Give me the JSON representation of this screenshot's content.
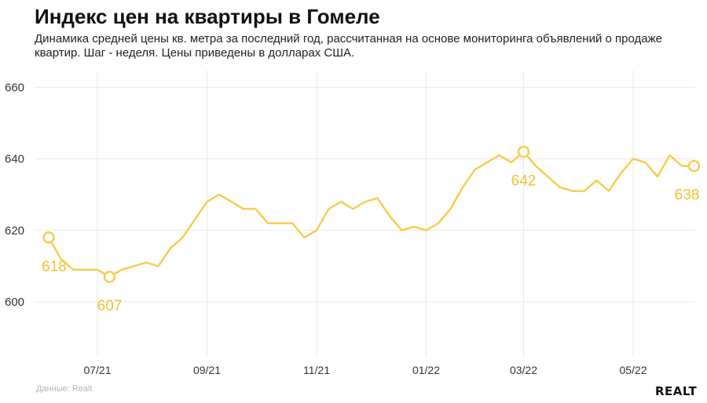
{
  "title": "Индекс цен на квартиры в Гомеле",
  "subtitle": "Динамика средней цены кв. метра за последний год, рассчитанная на основе мониторинга объявлений о продаже квартир. Шаг - неделя. Цены приведены в долларах США.",
  "source": "Данные: Realt",
  "logo": "REALT",
  "colors": {
    "line": "#f7cd50",
    "label": "#f2c232",
    "grid": "#e9e9e9",
    "tick": "#333333"
  },
  "chart_data": {
    "type": "line",
    "title": "Индекс цен на квартиры в Гомеле",
    "xlabel": "",
    "ylabel": "",
    "ylim": [
      585,
      665
    ],
    "yticks": [
      600,
      620,
      640,
      660
    ],
    "xticks": [
      "07/21",
      "09/21",
      "11/21",
      "01/22",
      "03/22",
      "05/22"
    ],
    "xtick_weeks": [
      4,
      13,
      22,
      31,
      39,
      48
    ],
    "grid": true,
    "legend": "none",
    "series": [
      {
        "name": "",
        "week": [
          0,
          1,
          2,
          3,
          4,
          5,
          6,
          7,
          8,
          9,
          10,
          11,
          12,
          13,
          14,
          15,
          16,
          17,
          18,
          19,
          20,
          21,
          22,
          23,
          24,
          25,
          26,
          27,
          28,
          29,
          30,
          31,
          32,
          33,
          34,
          35,
          36,
          37,
          38,
          39,
          40,
          41,
          42,
          43,
          44,
          45,
          46,
          47,
          48,
          49,
          50,
          51,
          52,
          53
        ],
        "values": [
          618,
          612,
          609,
          609,
          609,
          607,
          609,
          610,
          611,
          610,
          615,
          618,
          623,
          628,
          630,
          628,
          626,
          626,
          622,
          622,
          622,
          618,
          620,
          626,
          628,
          626,
          628,
          629,
          624,
          620,
          621,
          620,
          622,
          626,
          632,
          637,
          639,
          641,
          639,
          642,
          638,
          635,
          632,
          631,
          631,
          634,
          631,
          636,
          640,
          639,
          635,
          641,
          638,
          638
        ]
      }
    ],
    "annotations": [
      {
        "week": 0,
        "value": 618,
        "label": "618"
      },
      {
        "week": 5,
        "value": 607,
        "label": "607"
      },
      {
        "week": 39,
        "value": 642,
        "label": "642"
      },
      {
        "week": 53,
        "value": 638,
        "label": "638"
      }
    ]
  }
}
